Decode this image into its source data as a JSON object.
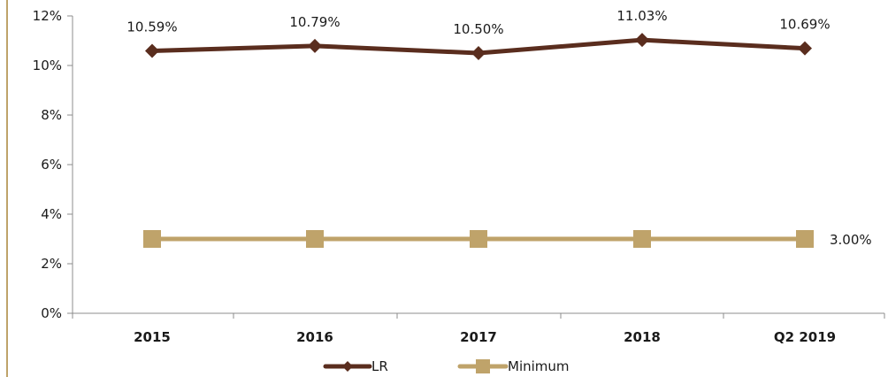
{
  "chart_data": {
    "type": "line",
    "categories": [
      "2015",
      "2016",
      "2017",
      "2018",
      "Q2 2019"
    ],
    "series": [
      {
        "name": "LR",
        "values": [
          10.59,
          10.79,
          10.5,
          11.03,
          10.69
        ],
        "labels": [
          "10.59%",
          "10.79%",
          "10.50%",
          "11.03%",
          "10.69%"
        ],
        "color": "#5a2d1e",
        "marker": "diamond"
      },
      {
        "name": "Minimum",
        "values": [
          3.0,
          3.0,
          3.0,
          3.0,
          3.0
        ],
        "labels": [
          "",
          "",
          "",
          "",
          "3.00%"
        ],
        "color": "#bfa36a",
        "marker": "square"
      }
    ],
    "yticks": [
      "0%",
      "2%",
      "4%",
      "6%",
      "8%",
      "10%",
      "12%"
    ],
    "ylim": [
      0,
      12
    ],
    "grid": false,
    "legend": "bottom-center",
    "colors": {
      "axis": "#8c8c8c",
      "left_border": "#bfa36a"
    }
  }
}
